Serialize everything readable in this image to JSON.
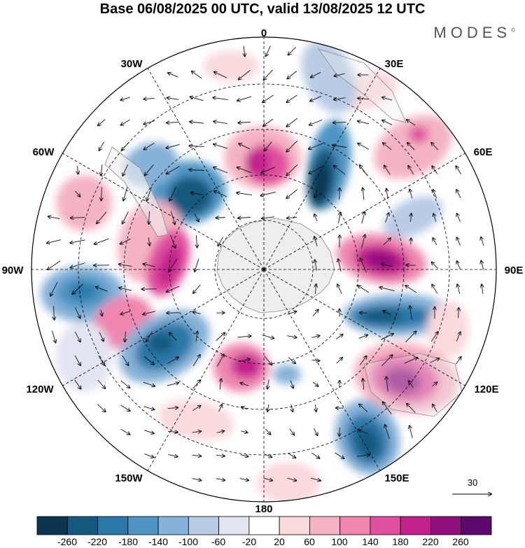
{
  "title": "Base 06/08/2025 00 UTC, valid 13/08/2025 12 UTC",
  "brand": "MODES",
  "brand_mark": "©",
  "longitude_labels": [
    "0",
    "30E",
    "60E",
    "90E",
    "120E",
    "150E",
    "180",
    "150W",
    "120W",
    "90W",
    "60W",
    "30W"
  ],
  "reference_vector": {
    "label": "30"
  },
  "colorbar": {
    "tick_labels": [
      "-260",
      "-220",
      "-180",
      "-140",
      "-100",
      "-60",
      "-20",
      "20",
      "60",
      "100",
      "140",
      "180",
      "220",
      "260"
    ],
    "colors": [
      "#0d3550",
      "#17587e",
      "#2b78a8",
      "#4f95c4",
      "#86b1d8",
      "#b9cbe5",
      "#e1e4f1",
      "#ffffff",
      "#f9d9dc",
      "#f4b3c2",
      "#ee86b0",
      "#e0509e",
      "#c2208d",
      "#92107e",
      "#5b0a6b"
    ]
  },
  "map_legend": {
    "positive": "#e0509e",
    "negative": "#2b78a8",
    "land": "#eeeeee"
  }
}
